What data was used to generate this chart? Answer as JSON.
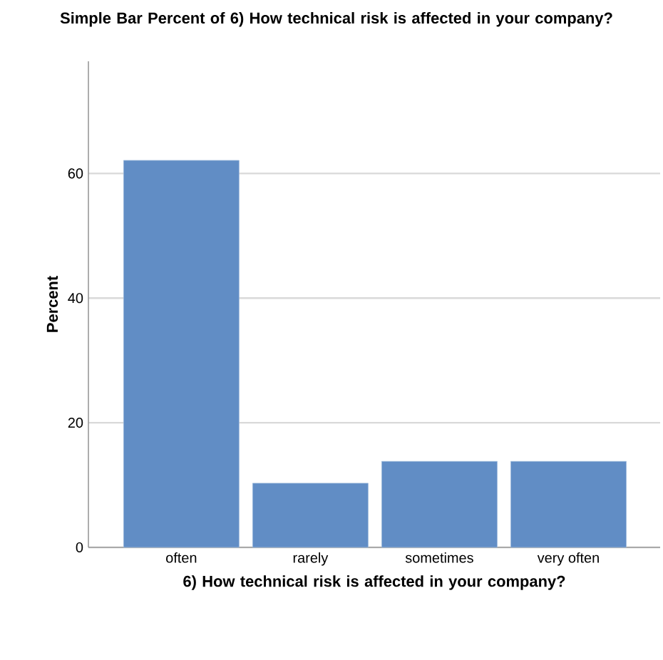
{
  "chart_data": {
    "type": "bar",
    "title": "Simple Bar Percent of 6) How technical risk is affected in your company?",
    "xlabel": "6) How technical risk is affected in your company?",
    "ylabel": "Percent",
    "categories": [
      "often",
      "rarely",
      "sometimes",
      "very often"
    ],
    "values": [
      62.1,
      10.3,
      13.8,
      13.8
    ],
    "color": "#618dc5",
    "ylim": [
      0,
      78
    ],
    "yticks": [
      0,
      20,
      40,
      60
    ],
    "grid": "y"
  }
}
